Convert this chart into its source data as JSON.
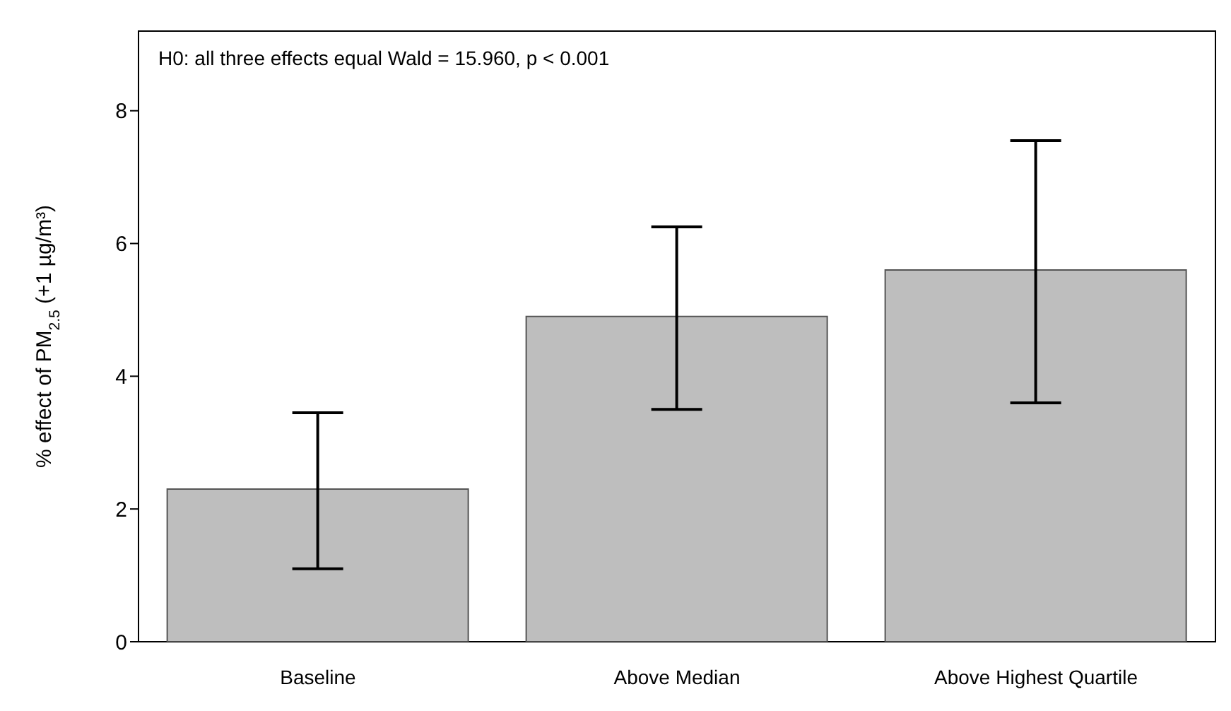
{
  "chart_data": {
    "type": "bar",
    "ylabel": "% effect of PM$_{2.5}$ (+1 µg/m³)",
    "categories": [
      "Baseline",
      "Above Median",
      "Above Highest Quartile"
    ],
    "values": [
      2.3,
      4.9,
      5.6
    ],
    "color": "#bebebe",
    "errors": [
      [
        1.1,
        3.45
      ],
      [
        3.5,
        6.25
      ],
      [
        3.6,
        7.55
      ]
    ],
    "ylim": [
      0,
      9.2
    ],
    "yticks": [
      0,
      2,
      4,
      6,
      8
    ],
    "grid": false,
    "annotations": [
      "H0: all three effects equal Wald = 15.960, p < 0.001"
    ]
  }
}
